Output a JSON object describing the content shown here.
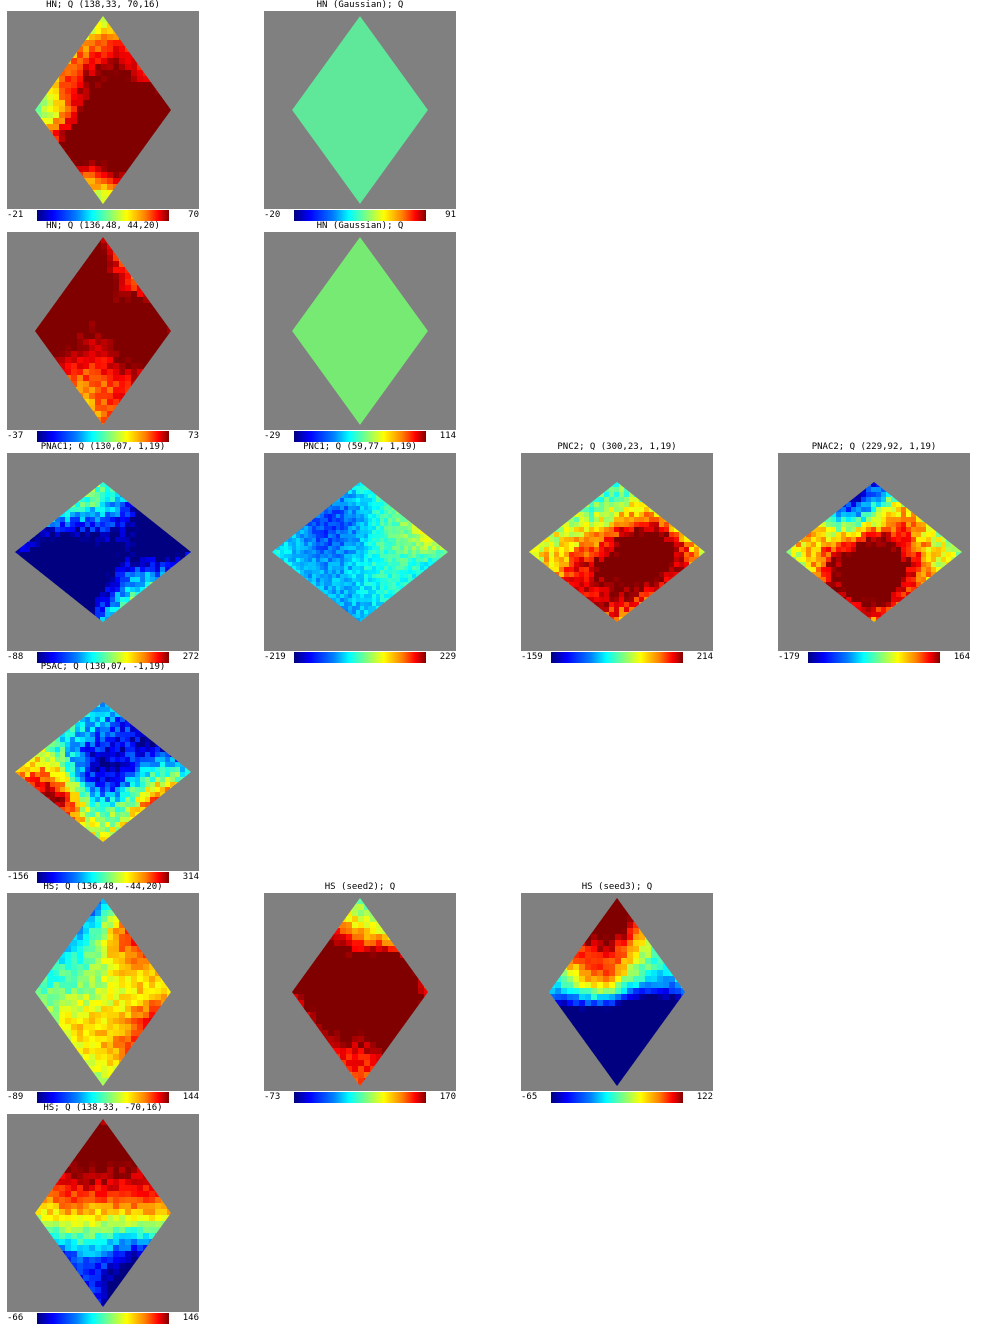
{
  "panels": [
    {
      "title": "HN; Q (138,33, 70,16)",
      "min": "-21",
      "max": "70",
      "shape": "tall",
      "style": "smooth",
      "seed": 11
    },
    {
      "title": "HN (Gaussian); Q",
      "min": "-20",
      "max": "91",
      "shape": "tall",
      "style": "flat",
      "flat_color": "#5fe79a",
      "seed": 12
    },
    {
      "title": "HN; Q (136,48, 44,20)",
      "min": "-37",
      "max": "73",
      "shape": "tall",
      "style": "smooth",
      "seed": 13
    },
    {
      "title": "HN (Gaussian); Q",
      "min": "-29",
      "max": "114",
      "shape": "tall",
      "style": "flat",
      "flat_color": "#77ea73",
      "seed": 14
    },
    {
      "title": "PNAC1; Q (130,07, 1,19)",
      "min": "-88",
      "max": "272",
      "shape": "wide",
      "style": "noisy",
      "seed": 15
    },
    {
      "title": "PNC1; Q (59,77, 1,19)",
      "min": "-219",
      "max": "229",
      "shape": "wide",
      "style": "fine",
      "seed": 16
    },
    {
      "title": "PNC2; Q (300,23, 1,19)",
      "min": "-159",
      "max": "214",
      "shape": "wide",
      "style": "noisy",
      "seed": 17
    },
    {
      "title": "PNAC2; Q (229,92, 1,19)",
      "min": "-179",
      "max": "164",
      "shape": "wide",
      "style": "noisy",
      "seed": 18
    },
    {
      "title": "PSAC; Q (130,07, -1,19)",
      "min": "-156",
      "max": "314",
      "shape": "wide",
      "style": "noisy",
      "seed": 19
    },
    {
      "title": "HS; Q (136,48, -44,20)",
      "min": "-89",
      "max": "144",
      "shape": "tall",
      "style": "smooth",
      "seed": 20
    },
    {
      "title": "HS (seed2); Q",
      "min": "-73",
      "max": "170",
      "shape": "tall",
      "style": "smooth",
      "seed": 21
    },
    {
      "title": "HS (seed3); Q",
      "min": "-65",
      "max": "122",
      "shape": "tall",
      "style": "smooth",
      "seed": 22
    },
    {
      "title": "HS; Q (138,33, -70,16)",
      "min": "-66",
      "max": "146",
      "shape": "tall",
      "style": "smooth",
      "seed": 23
    }
  ],
  "colors": {
    "background": "#808080",
    "page": "#ffffff"
  }
}
